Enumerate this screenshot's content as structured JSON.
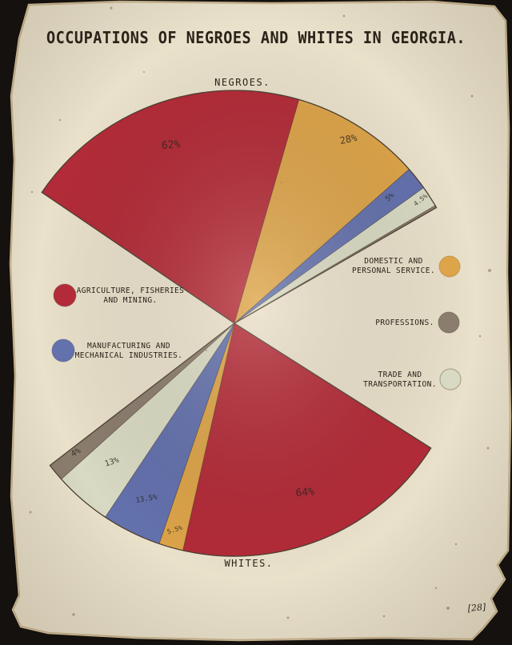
{
  "page": {
    "title": "OCCUPATIONS OF NEGROES AND WHITES IN GEORGIA.",
    "marginalia": "[28]"
  },
  "colors": {
    "agriculture": "#b32b38",
    "domestic": "#dda449",
    "manufacturing": "#6371ad",
    "trade": "#d9dac3",
    "professions": "#8b7d6e",
    "paper": "#eae1cb",
    "ink": "#262019",
    "outline": "#4d4132",
    "pct_label": "#3b2d1e"
  },
  "legend": {
    "left": [
      {
        "key": "agriculture",
        "lines": [
          "AGRICULTURE, FISHERIES",
          "AND MINING."
        ]
      },
      {
        "key": "manufacturing",
        "lines": [
          "MANUFACTURING AND",
          "MECHANICAL INDUSTRIES."
        ]
      }
    ],
    "right": [
      {
        "key": "domestic",
        "lines": [
          "DOMESTIC AND",
          "PERSONAL SERVICE."
        ]
      },
      {
        "key": "professions",
        "lines": [
          "PROFESSIONS.",
          ""
        ]
      },
      {
        "key": "trade",
        "lines": [
          "TRADE AND",
          "TRANSPORTATION."
        ]
      }
    ]
  },
  "chart_data": {
    "type": "pie",
    "variant": "double-fan",
    "title": "OCCUPATIONS OF NEGROES AND WHITES IN GEORGIA.",
    "legend_position": "middle-left-and-right",
    "center": [
      293,
      404
    ],
    "radius": 291,
    "fans": [
      {
        "group": "NEGROES.",
        "start_deg": 214.2,
        "total_deg": 116,
        "slices": [
          {
            "category": "Agriculture, Fisheries and Mining",
            "pct": 62,
            "label": "62%",
            "color_key": "agriculture",
            "label_r": 0.8,
            "label_rot": -5,
            "label_size": 13
          },
          {
            "category": "Domestic and Personal Service",
            "pct": 28,
            "label": "28%",
            "color_key": "domestic",
            "label_r": 0.92,
            "label_rot": -12,
            "label_size": 12
          },
          {
            "category": "Manufacturing and Mechanical Industries",
            "pct": 5,
            "label": "5%",
            "color_key": "manufacturing",
            "label_r": 0.86,
            "label_rot": -42,
            "label_size": 9
          },
          {
            "category": "Trade and Transportation",
            "pct": 4.5,
            "label": "4.5%",
            "color_key": "trade",
            "label_r": 0.96,
            "label_rot": -38,
            "label_size": 8
          },
          {
            "category": "Professions",
            "pct": 0.5,
            "label": "",
            "color_key": "professions",
            "label_r": 0,
            "label_rot": 0,
            "label_size": 0
          }
        ]
      },
      {
        "group": "WHITES.",
        "start_deg": 32.4,
        "total_deg": 110,
        "slices": [
          {
            "category": "Agriculture, Fisheries and Mining",
            "pct": 64,
            "label": "64%",
            "color_key": "agriculture",
            "label_r": 0.8,
            "label_rot": -5,
            "label_size": 13
          },
          {
            "category": "Domestic and Personal Service",
            "pct": 5.5,
            "label": "5.5%",
            "color_key": "domestic",
            "label_r": 0.93,
            "label_rot": -18,
            "label_size": 8
          },
          {
            "category": "Manufacturing and Mechanical Industries",
            "pct": 13.5,
            "label": "13.5%",
            "color_key": "manufacturing",
            "label_r": 0.85,
            "label_rot": -10,
            "label_size": 9
          },
          {
            "category": "Trade and Transportation",
            "pct": 13,
            "label": "13%",
            "color_key": "trade",
            "label_r": 0.8,
            "label_rot": -18,
            "label_size": 10
          },
          {
            "category": "Professions",
            "pct": 4,
            "label": "4%",
            "color_key": "professions",
            "label_r": 0.88,
            "label_rot": -30,
            "label_size": 10
          }
        ]
      }
    ]
  }
}
